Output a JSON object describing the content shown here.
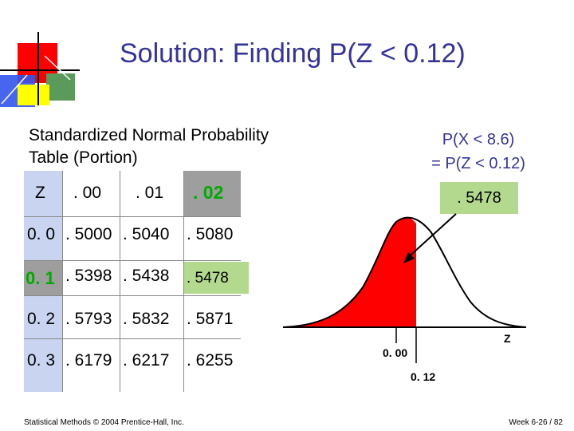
{
  "title": "Solution: Finding P(Z < 0.12)",
  "subtitle": {
    "line1": "Standardized Normal Probability",
    "line2": "Table (Portion)"
  },
  "callout": {
    "line1": "P(X < 8.6)",
    "line2": "= P(Z < 0.12)"
  },
  "table": {
    "headers": [
      "Z",
      ". 00",
      ". 01",
      ". 02"
    ],
    "rows": [
      {
        "z": "0. 0",
        "c0": ". 5000",
        "c1": ". 5040",
        "c2": ". 5080"
      },
      {
        "z": "0. 1",
        "c0": ". 5398",
        "c1": ". 5438",
        "c2": ". 5478"
      },
      {
        "z": "0. 2",
        "c0": ". 5793",
        "c1": ". 5832",
        "c2": ". 5871"
      },
      {
        "z": "0. 3",
        "c0": ". 6179",
        "c1": ". 6217",
        "c2": ". 6255"
      }
    ]
  },
  "result": ". 5478",
  "graph": {
    "mean_label": "0. 00",
    "z_label": "0. 12",
    "axis_label": "Z"
  },
  "footer": {
    "left": "Statistical Methods © 2004 Prentice-Hall, Inc.",
    "right": "Week 6-26 / 82"
  },
  "colors": {
    "title": "#333399",
    "shade": "#ff0000",
    "highlight_green": "#b3d98f",
    "highlight_gray": "#9e9e9e",
    "z_column": "#c8d4f0"
  }
}
